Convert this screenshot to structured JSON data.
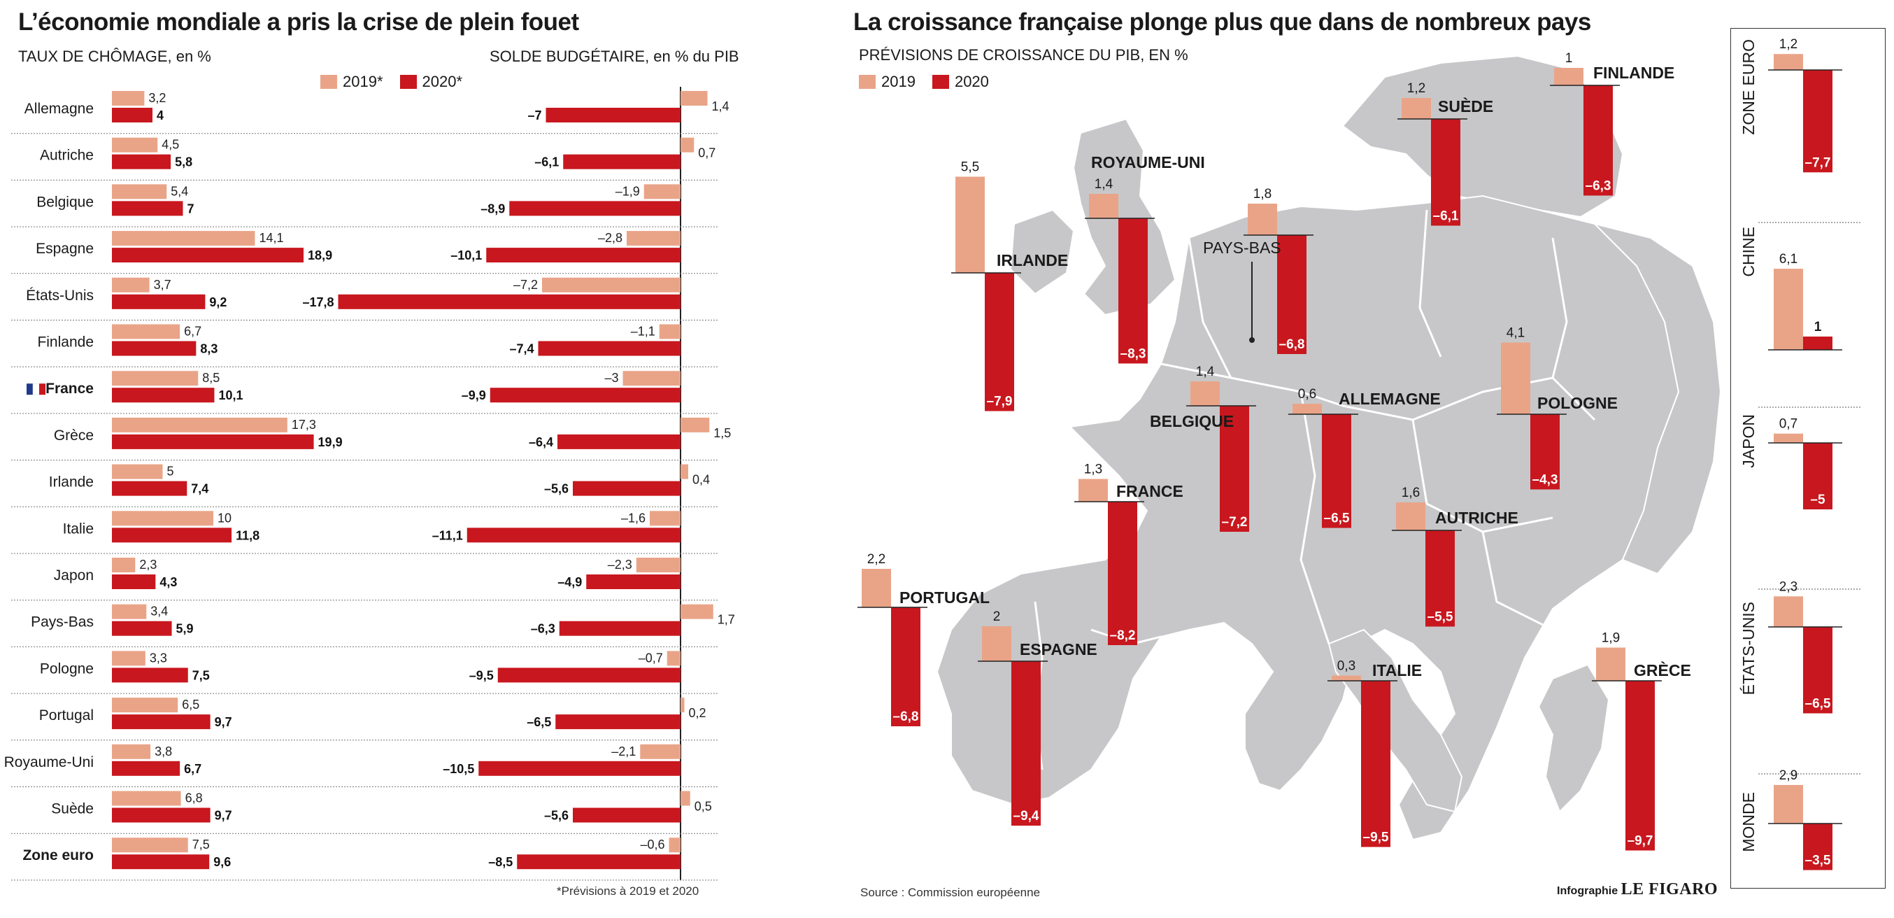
{
  "colors": {
    "c2019": "#e9a488",
    "c2020": "#c8171e",
    "map": "#c7c7c9",
    "map_border": "#ffffff",
    "sea": "#ffffff"
  },
  "left": {
    "title": "L’économie mondiale a pris la crise de plein fouet",
    "unemp_title": "TAUX DE CHÔMAGE, en %",
    "budget_title": "SOLDE BUDGÉTAIRE, en % du PIB",
    "legend_2019": "2019*",
    "legend_2020": "2020*",
    "footnote": "*Prévisions à 2019 et 2020"
  },
  "right": {
    "title": "La croissance française plonge plus que dans de nombreux pays",
    "subtitle": "PRÉVISIONS DE CROISSANCE DU PIB, EN %",
    "legend_2019": "2019",
    "legend_2020": "2020",
    "source": "Source : Commission européenne",
    "credit_prefix": "Infographie",
    "credit_logo": "LE FIGARO"
  },
  "chart_data": [
    {
      "type": "bar",
      "title": "TAUX DE CHÔMAGE, en %",
      "orientation": "horizontal",
      "categories": [
        "Allemagne",
        "Autriche",
        "Belgique",
        "Espagne",
        "États-Unis",
        "Finlande",
        "France",
        "Grèce",
        "Irlande",
        "Italie",
        "Japon",
        "Pays-Bas",
        "Pologne",
        "Portugal",
        "Royaume-Uni",
        "Suède",
        "Zone euro"
      ],
      "series": [
        {
          "name": "2019*",
          "values": [
            3.2,
            4.5,
            5.4,
            14.1,
            3.7,
            6.7,
            8.5,
            17.3,
            5,
            10,
            2.3,
            3.4,
            3.3,
            6.5,
            3.8,
            6.8,
            7.5
          ]
        },
        {
          "name": "2020*",
          "values": [
            4,
            5.8,
            7,
            18.9,
            9.2,
            8.3,
            10.1,
            19.9,
            7.4,
            11.8,
            4.3,
            5.9,
            7.5,
            9.7,
            6.7,
            9.7,
            9.6
          ]
        }
      ],
      "labels_2019": [
        "3,2",
        "4,5",
        "5,4",
        "14,1",
        "3,7",
        "6,7",
        "8,5",
        "17,3",
        "5",
        "10",
        "2,3",
        "3,4",
        "3,3",
        "6,5",
        "3,8",
        "6,8",
        "7,5"
      ],
      "labels_2020": [
        "4",
        "5,8",
        "7",
        "18,9",
        "9,2",
        "8,3",
        "10,1",
        "19,9",
        "7,4",
        "11,8",
        "4,3",
        "5,9",
        "7,5",
        "9,7",
        "6,7",
        "9,7",
        "9,6"
      ],
      "bold_categories": [
        "France",
        "Zone euro"
      ]
    },
    {
      "type": "bar",
      "title": "SOLDE BUDGÉTAIRE, en % du PIB",
      "orientation": "horizontal",
      "categories": [
        "Allemagne",
        "Autriche",
        "Belgique",
        "Espagne",
        "États-Unis",
        "Finlande",
        "France",
        "Grèce",
        "Irlande",
        "Italie",
        "Japon",
        "Pays-Bas",
        "Pologne",
        "Portugal",
        "Royaume-Uni",
        "Suède",
        "Zone euro"
      ],
      "series": [
        {
          "name": "2019*",
          "values": [
            1.4,
            0.7,
            -1.9,
            -2.8,
            -7.2,
            -1.1,
            -3,
            1.5,
            0.4,
            -1.6,
            -2.3,
            1.7,
            -0.7,
            0.2,
            -2.1,
            0.5,
            -0.6
          ]
        },
        {
          "name": "2020*",
          "values": [
            -7,
            -6.1,
            -8.9,
            -10.1,
            -17.8,
            -7.4,
            -9.9,
            -6.4,
            -5.6,
            -11.1,
            -4.9,
            -6.3,
            -9.5,
            -6.5,
            -10.5,
            -5.6,
            -8.5
          ]
        }
      ],
      "labels_2019": [
        "1,4",
        "0,7",
        "–1,9",
        "–2,8",
        "–7,2",
        "–1,1",
        "–3",
        "1,5",
        "0,4",
        "–1,6",
        "–2,3",
        "1,7",
        "–0,7",
        "0,2",
        "–2,1",
        "0,5",
        "–0,6"
      ],
      "labels_2020": [
        "–7",
        "–6,1",
        "–8,9",
        "–10,1",
        "–17,8",
        "–7,4",
        "–9,9",
        "–6,4",
        "–5,6",
        "–11,1",
        "–4,9",
        "–6,3",
        "–9,5",
        "–6,5",
        "–10,5",
        "–5,6",
        "–8,5"
      ]
    },
    {
      "type": "bar",
      "title": "PRÉVISIONS DE CROISSANCE DU PIB, EN %",
      "categories": [
        "IRLANDE",
        "ROYAUME-UNI",
        "PAYS-BAS",
        "SUÈDE",
        "FINLANDE",
        "BELGIQUE",
        "ALLEMAGNE",
        "POLOGNE",
        "FRANCE",
        "AUTRICHE",
        "PORTUGAL",
        "ESPAGNE",
        "ITALIE",
        "GRÈCE"
      ],
      "series": [
        {
          "name": "2019",
          "values": [
            5.5,
            1.4,
            1.8,
            1.2,
            1,
            1.4,
            0.6,
            4.1,
            1.3,
            1.6,
            2.2,
            2,
            0.3,
            1.9
          ]
        },
        {
          "name": "2020",
          "values": [
            -7.9,
            -8.3,
            -6.8,
            -6.1,
            -6.3,
            -7.2,
            -6.5,
            -4.3,
            -8.2,
            -5.5,
            -6.8,
            -9.4,
            -9.5,
            -9.7
          ]
        }
      ],
      "labels_2019": [
        "5,5",
        "1,4",
        "1,8",
        "1,2",
        "1",
        "1,4",
        "0,6",
        "4,1",
        "1,3",
        "1,6",
        "2,2",
        "2",
        "0,3",
        "1,9"
      ],
      "labels_2020": [
        "–7,9",
        "–8,3",
        "–6,8",
        "–6,1",
        "–6,3",
        "–7,2",
        "–6,5",
        "–4,3",
        "–8,2",
        "–5,5",
        "–6,8",
        "–9,4",
        "–9,5",
        "–9,7"
      ]
    },
    {
      "type": "bar",
      "categories": [
        "ZONE EURO",
        "CHINE",
        "JAPON",
        "ÉTATS-UNIS",
        "MONDE"
      ],
      "series": [
        {
          "name": "2019",
          "values": [
            1.2,
            6.1,
            0.7,
            2.3,
            2.9
          ]
        },
        {
          "name": "2020",
          "values": [
            -7.7,
            1,
            -5,
            -6.5,
            -3.5
          ]
        }
      ],
      "labels_2019": [
        "1,2",
        "6,1",
        "0,7",
        "2,3",
        "2,9"
      ],
      "labels_2020": [
        "–7,7",
        "1",
        "–5",
        "–6,5",
        "–3,5"
      ]
    }
  ]
}
